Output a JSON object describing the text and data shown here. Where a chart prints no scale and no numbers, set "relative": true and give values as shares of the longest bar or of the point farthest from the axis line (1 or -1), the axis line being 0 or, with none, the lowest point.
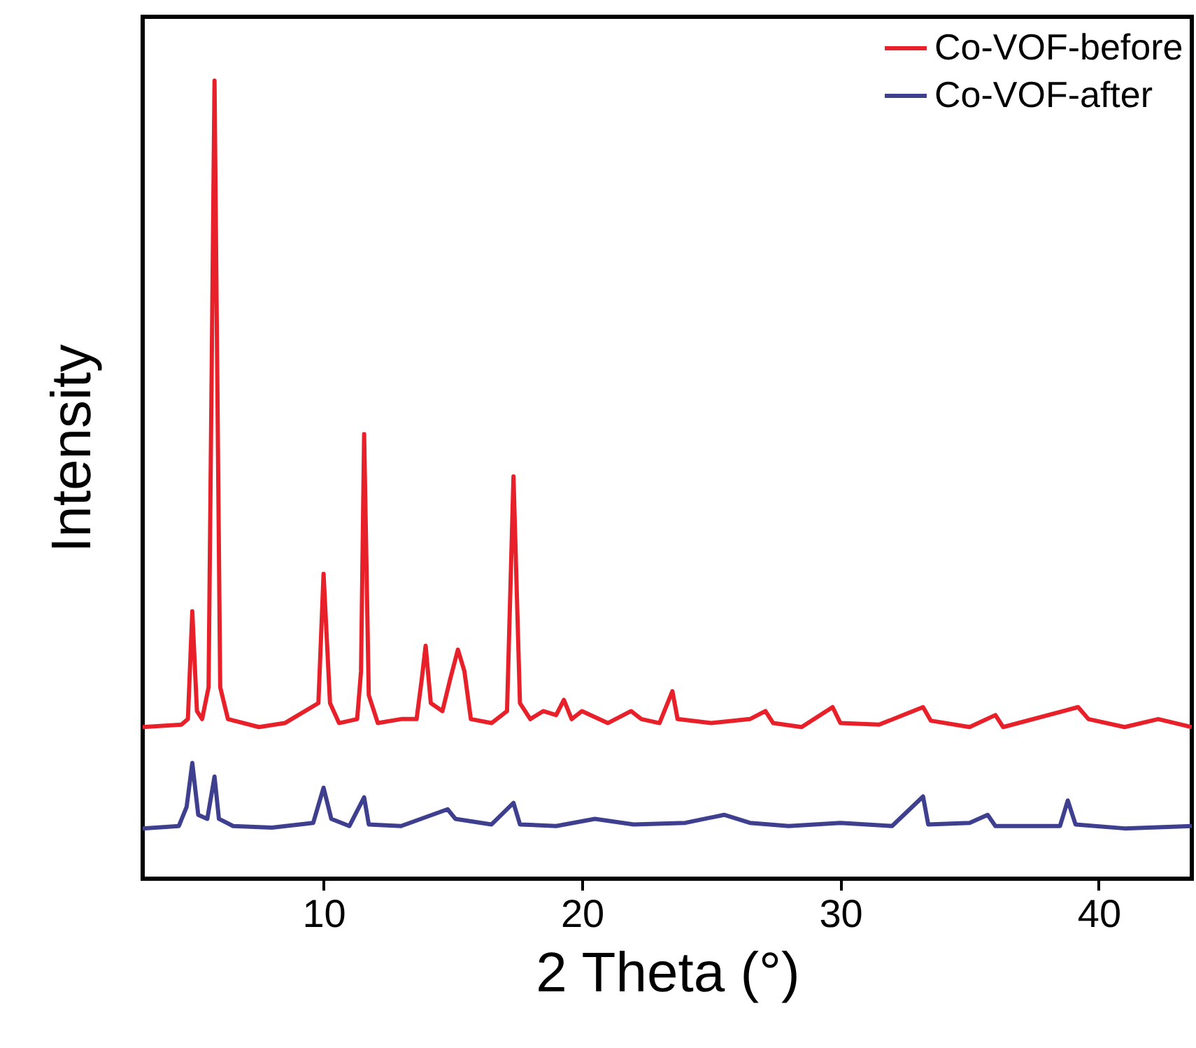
{
  "chart_data": {
    "type": "line",
    "xlabel": "2 Theta (°)",
    "ylabel": "Intensity",
    "relative": true,
    "legend": "top right",
    "xlim": [
      3,
      43.6
    ],
    "xticks": [
      10,
      20,
      30,
      40
    ],
    "x": [
      3.0,
      4.5,
      4.75,
      4.92,
      5.1,
      5.3,
      5.55,
      5.78,
      6.0,
      6.3,
      7.5,
      8.5,
      9.8,
      10.0,
      10.25,
      10.6,
      11.3,
      11.45,
      11.57,
      11.75,
      12.1,
      13.0,
      13.6,
      13.8,
      13.95,
      14.15,
      14.6,
      14.9,
      15.2,
      15.45,
      15.7,
      16.5,
      17.1,
      17.35,
      17.6,
      18.0,
      18.5,
      19.0,
      19.3,
      19.6,
      20.0,
      21.0,
      21.9,
      22.3,
      23.0,
      23.5,
      23.7,
      25.0,
      26.5,
      27.1,
      27.4,
      28.5,
      29.7,
      30.0,
      31.5,
      33.2,
      33.5,
      35.0,
      36.0,
      36.3,
      39.2,
      39.6,
      41.0,
      42.3,
      43.6
    ],
    "series": [
      {
        "name": "Co-VOF-before",
        "color": "#e8202a",
        "values": [
          0.19,
          0.193,
          0.2,
          0.335,
          0.21,
          0.2,
          0.24,
          1.0,
          0.24,
          0.2,
          0.19,
          0.195,
          0.22,
          0.382,
          0.22,
          0.195,
          0.2,
          0.26,
          0.557,
          0.23,
          0.195,
          0.2,
          0.2,
          0.25,
          0.292,
          0.22,
          0.21,
          0.25,
          0.287,
          0.26,
          0.2,
          0.195,
          0.21,
          0.504,
          0.22,
          0.2,
          0.21,
          0.205,
          0.224,
          0.2,
          0.21,
          0.195,
          0.21,
          0.2,
          0.195,
          0.235,
          0.2,
          0.195,
          0.2,
          0.21,
          0.195,
          0.19,
          0.215,
          0.195,
          0.193,
          0.215,
          0.198,
          0.19,
          0.205,
          0.19,
          0.215,
          0.2,
          0.19,
          0.2,
          0.19
        ]
      },
      {
        "name": "Co-VOF-after",
        "color": "#3f3f8f",
        "x": [
          3.0,
          4.4,
          4.7,
          4.92,
          5.15,
          5.5,
          5.78,
          5.95,
          6.5,
          8.0,
          9.6,
          10.0,
          10.3,
          11.0,
          11.57,
          11.75,
          13.0,
          14.8,
          15.1,
          16.5,
          17.35,
          17.6,
          19.0,
          20.5,
          22.0,
          24.0,
          25.5,
          26.5,
          28.0,
          30.0,
          32.0,
          33.2,
          33.4,
          35.0,
          35.7,
          36.0,
          38.5,
          38.8,
          39.1,
          41.0,
          43.6
        ],
        "values": [
          0.063,
          0.066,
          0.09,
          0.145,
          0.08,
          0.075,
          0.128,
          0.075,
          0.066,
          0.064,
          0.07,
          0.114,
          0.075,
          0.066,
          0.102,
          0.068,
          0.066,
          0.087,
          0.075,
          0.068,
          0.095,
          0.068,
          0.066,
          0.075,
          0.068,
          0.07,
          0.08,
          0.07,
          0.066,
          0.07,
          0.066,
          0.103,
          0.068,
          0.07,
          0.08,
          0.066,
          0.066,
          0.098,
          0.068,
          0.063,
          0.066
        ]
      }
    ]
  }
}
